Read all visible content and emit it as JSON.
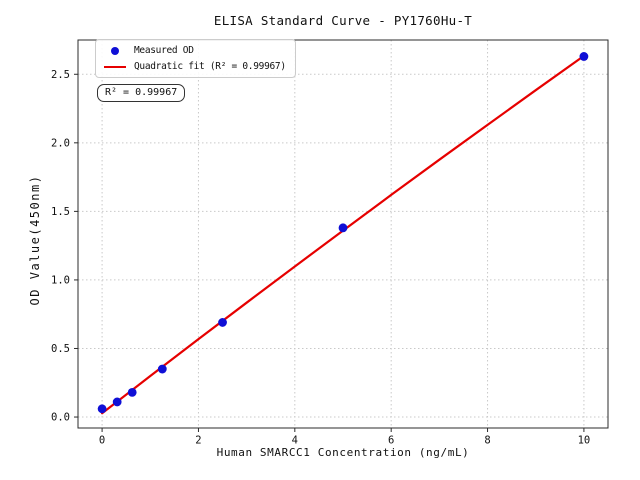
{
  "chart_data": {
    "type": "scatter",
    "title": "ELISA Standard Curve - PY1760Hu-T",
    "xlabel": "Human SMARCC1 Concentration (ng/mL)",
    "ylabel": "OD Value(450nm)",
    "xlim": [
      -0.5,
      10.5
    ],
    "ylim": [
      -0.08,
      2.75
    ],
    "grid": true,
    "legend_position": "upper-left",
    "x_ticks": {
      "values": [
        0,
        2,
        4,
        6,
        8,
        10
      ],
      "labels": [
        "0",
        "2",
        "4",
        "6",
        "8",
        "10"
      ]
    },
    "y_ticks": {
      "values": [
        0.0,
        0.5,
        1.0,
        1.5,
        2.0,
        2.5
      ],
      "labels": [
        "0.0",
        "0.5",
        "1.0",
        "1.5",
        "2.0",
        "2.5"
      ]
    },
    "series": [
      {
        "name": "Measured OD",
        "type": "scatter",
        "x": [
          0,
          0.313,
          0.625,
          1.25,
          2.5,
          5,
          10
        ],
        "y": [
          0.06,
          0.11,
          0.18,
          0.35,
          0.69,
          1.38,
          2.63
        ]
      },
      {
        "name": "Quadratic fit (R² = 0.99967)",
        "type": "line",
        "x": [
          0,
          1,
          2,
          3,
          4,
          5,
          6,
          7,
          8,
          9,
          10
        ],
        "y": [
          0.028,
          0.299,
          0.568,
          0.834,
          1.098,
          1.36,
          1.62,
          1.877,
          2.131,
          2.384,
          2.634
        ]
      }
    ],
    "annotation": "R² = 0.99967",
    "r_squared": "0.99967"
  },
  "colors": {
    "point": "#0f0fd6",
    "line": "#e60000",
    "grid": "#c9c9c9",
    "spine": "#2b2b2b",
    "tick_text": "#111111"
  }
}
